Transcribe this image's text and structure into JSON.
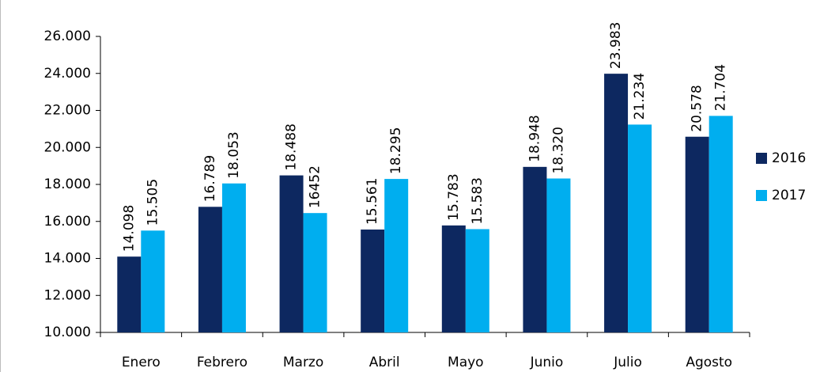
{
  "chart_data": {
    "type": "bar",
    "categories": [
      "Enero",
      "Febrero",
      "Marzo",
      "Abril",
      "Mayo",
      "Junio",
      "Julio",
      "Agosto"
    ],
    "series": [
      {
        "name": "2016",
        "color": "#0d2860",
        "values": [
          14098,
          16789,
          18488,
          15561,
          15783,
          18948,
          23983,
          20578
        ],
        "value_labels": [
          "14.098",
          "16.789",
          "18.488",
          "15.561",
          "15.783",
          "18.948",
          "23.983",
          "20.578"
        ]
      },
      {
        "name": "2017",
        "color": "#00aeef",
        "values": [
          15505,
          18053,
          16452,
          18295,
          15583,
          18320,
          21234,
          21704
        ],
        "value_labels": [
          "15.505",
          "18.053",
          "16452",
          "18.295",
          "15.583",
          "18.320",
          "21.234",
          "21.704"
        ]
      }
    ],
    "ylim": [
      10000,
      26000
    ],
    "yticks": [
      {
        "value": 10000,
        "label": "10.000"
      },
      {
        "value": 12000,
        "label": "12.000"
      },
      {
        "value": 14000,
        "label": "14.000"
      },
      {
        "value": 16000,
        "label": "16.000"
      },
      {
        "value": 18000,
        "label": "18.000"
      },
      {
        "value": 20000,
        "label": "20.000"
      },
      {
        "value": 22000,
        "label": "22.000"
      },
      {
        "value": 24000,
        "label": "24.000"
      },
      {
        "value": 26000,
        "label": "26.000"
      }
    ],
    "grid": false,
    "legend": "right"
  }
}
